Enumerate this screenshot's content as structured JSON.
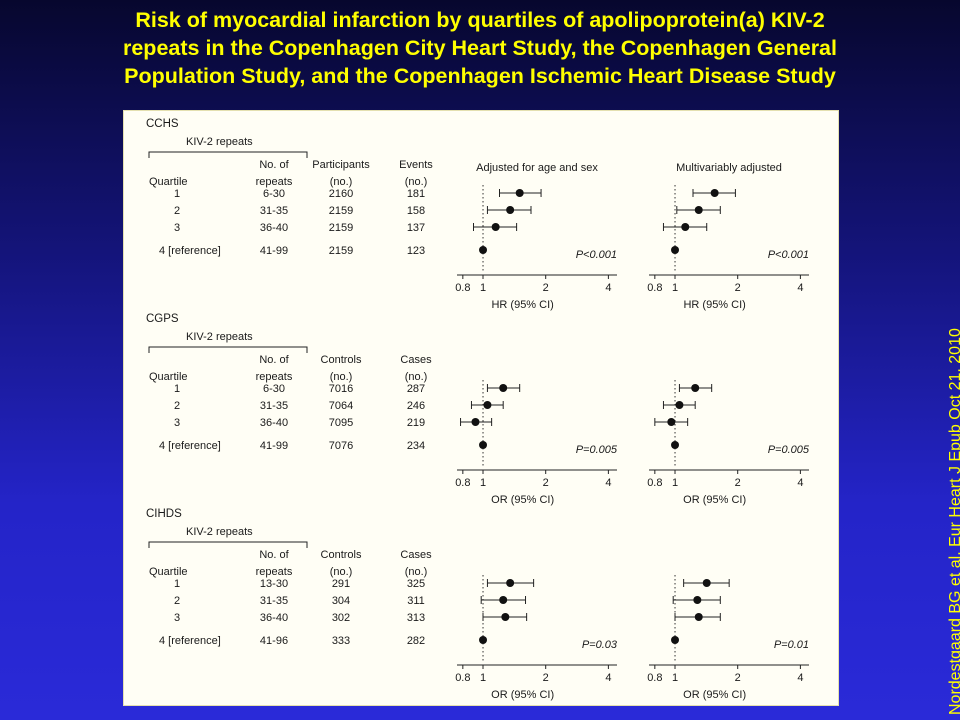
{
  "title_lines": [
    "Risk of myocardial infarction by quartiles of apolipoprotein(a) KIV-2",
    "repeats in the Copenhagen City Heart Study, the Copenhagen General",
    "Population Study, and the Copenhagen Ischemic Heart Disease Study"
  ],
  "citation": "Nordestgaard BG et al. Eur Heart J  Epub Oct 21, 2010",
  "colors": {
    "title": "#ffff00",
    "background": "#2a2ad8",
    "panel": "#fffef5"
  },
  "chart_data": [
    {
      "type": "forest",
      "study": "CCHS",
      "group_header": "KIV-2  repeats",
      "col_quartile": "Quartile",
      "col_repeats": [
        "No. of",
        "repeats"
      ],
      "col_n": [
        "Participants",
        "(no.)"
      ],
      "col_events": [
        "Events",
        "(no.)"
      ],
      "rows": [
        {
          "quartile": "1",
          "repeats": "6-30",
          "n": "2160",
          "events": "181"
        },
        {
          "quartile": "2",
          "repeats": "31-35",
          "n": "2159",
          "events": "158"
        },
        {
          "quartile": "3",
          "repeats": "36-40",
          "n": "2159",
          "events": "137"
        },
        {
          "quartile": "4 [reference]",
          "repeats": "41-99",
          "n": "2159",
          "events": "123"
        }
      ],
      "panels": [
        {
          "label": "Adjusted for age and sex",
          "p_text": "P<0.001",
          "axis_label": "HR (95% CI)",
          "estimates": [
            {
              "est": 1.5,
              "lo": 1.2,
              "hi": 1.9
            },
            {
              "est": 1.35,
              "lo": 1.05,
              "hi": 1.7
            },
            {
              "est": 1.15,
              "lo": 0.9,
              "hi": 1.45
            },
            {
              "est": 1.0,
              "lo": 1.0,
              "hi": 1.0
            }
          ]
        },
        {
          "label": "Multivariably  adjusted",
          "p_text": "P<0.001",
          "axis_label": "HR (95% CI)",
          "estimates": [
            {
              "est": 1.55,
              "lo": 1.22,
              "hi": 1.95
            },
            {
              "est": 1.3,
              "lo": 1.02,
              "hi": 1.65
            },
            {
              "est": 1.12,
              "lo": 0.88,
              "hi": 1.42
            },
            {
              "est": 1.0,
              "lo": 1.0,
              "hi": 1.0
            }
          ]
        }
      ],
      "x_ticks": [
        "0.8",
        "1",
        "2",
        "4"
      ],
      "x_scale": "log",
      "xlim": [
        0.75,
        4.4
      ]
    },
    {
      "type": "forest",
      "study": "CGPS",
      "group_header": "KIV-2  repeats",
      "col_quartile": "Quartile",
      "col_repeats": [
        "No. of",
        "repeats"
      ],
      "col_n": [
        "Controls",
        "(no.)"
      ],
      "col_events": [
        "Cases",
        "(no.)"
      ],
      "rows": [
        {
          "quartile": "1",
          "repeats": "6-30",
          "n": "7016",
          "events": "287"
        },
        {
          "quartile": "2",
          "repeats": "31-35",
          "n": "7064",
          "events": "246"
        },
        {
          "quartile": "3",
          "repeats": "36-40",
          "n": "7095",
          "events": "219"
        },
        {
          "quartile": "4 [reference]",
          "repeats": "41-99",
          "n": "7076",
          "events": "234"
        }
      ],
      "panels": [
        {
          "label": "",
          "p_text": "P=0.005",
          "axis_label": "OR (95% CI)",
          "estimates": [
            {
              "est": 1.25,
              "lo": 1.05,
              "hi": 1.5
            },
            {
              "est": 1.05,
              "lo": 0.88,
              "hi": 1.25
            },
            {
              "est": 0.92,
              "lo": 0.78,
              "hi": 1.1
            },
            {
              "est": 1.0,
              "lo": 1.0,
              "hi": 1.0
            }
          ]
        },
        {
          "label": "",
          "p_text": "P=0.005",
          "axis_label": "OR (95% CI)",
          "estimates": [
            {
              "est": 1.25,
              "lo": 1.05,
              "hi": 1.5
            },
            {
              "est": 1.05,
              "lo": 0.88,
              "hi": 1.25
            },
            {
              "est": 0.96,
              "lo": 0.8,
              "hi": 1.15
            },
            {
              "est": 1.0,
              "lo": 1.0,
              "hi": 1.0
            }
          ]
        }
      ],
      "x_ticks": [
        "0.8",
        "1",
        "2",
        "4"
      ],
      "x_scale": "log",
      "xlim": [
        0.75,
        4.4
      ]
    },
    {
      "type": "forest",
      "study": "CIHDS",
      "group_header": "KIV-2  repeats",
      "col_quartile": "Quartile",
      "col_repeats": [
        "No. of",
        "repeats"
      ],
      "col_n": [
        "Controls",
        "(no.)"
      ],
      "col_events": [
        "Cases",
        "(no.)"
      ],
      "rows": [
        {
          "quartile": "1",
          "repeats": "13-30",
          "n": "291",
          "events": "325"
        },
        {
          "quartile": "2",
          "repeats": "31-35",
          "n": "304",
          "events": "311"
        },
        {
          "quartile": "3",
          "repeats": "36-40",
          "n": "302",
          "events": "313"
        },
        {
          "quartile": "4 [reference]",
          "repeats": "41-96",
          "n": "333",
          "events": "282"
        }
      ],
      "panels": [
        {
          "label": "",
          "p_text": "P=0.03",
          "axis_label": "OR (95% CI)",
          "estimates": [
            {
              "est": 1.35,
              "lo": 1.05,
              "hi": 1.75
            },
            {
              "est": 1.25,
              "lo": 0.98,
              "hi": 1.6
            },
            {
              "est": 1.28,
              "lo": 1.0,
              "hi": 1.62
            },
            {
              "est": 1.0,
              "lo": 1.0,
              "hi": 1.0
            }
          ]
        },
        {
          "label": "",
          "p_text": "P=0.01",
          "axis_label": "OR (95% CI)",
          "estimates": [
            {
              "est": 1.42,
              "lo": 1.1,
              "hi": 1.82
            },
            {
              "est": 1.28,
              "lo": 0.98,
              "hi": 1.65
            },
            {
              "est": 1.3,
              "lo": 1.0,
              "hi": 1.65
            },
            {
              "est": 1.0,
              "lo": 1.0,
              "hi": 1.0
            }
          ]
        }
      ],
      "x_ticks": [
        "0.8",
        "1",
        "2",
        "4"
      ],
      "x_scale": "log",
      "xlim": [
        0.75,
        4.4
      ]
    }
  ]
}
